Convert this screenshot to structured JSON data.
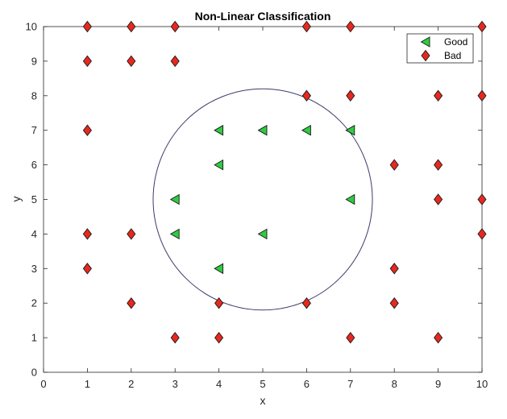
{
  "chart_data": {
    "type": "scatter",
    "title": "Non-Linear Classification",
    "xlabel": "x",
    "ylabel": "y",
    "xlim": [
      0,
      10
    ],
    "ylim": [
      0,
      10
    ],
    "xticks": [
      0,
      1,
      2,
      3,
      4,
      5,
      6,
      7,
      8,
      9,
      10
    ],
    "yticks": [
      0,
      1,
      2,
      3,
      4,
      5,
      6,
      7,
      8,
      9,
      10
    ],
    "grid": false,
    "legend_position": "top-right",
    "series": [
      {
        "name": "Good",
        "marker": "triangle-left",
        "color": "#2ecc40",
        "points": [
          [
            4,
            7
          ],
          [
            5,
            7
          ],
          [
            6,
            7
          ],
          [
            7,
            7
          ],
          [
            4,
            6
          ],
          [
            3,
            5
          ],
          [
            7,
            5
          ],
          [
            3,
            4
          ],
          [
            5,
            4
          ],
          [
            4,
            3
          ]
        ]
      },
      {
        "name": "Bad",
        "marker": "diamond",
        "color": "#e8281e",
        "points": [
          [
            1,
            10
          ],
          [
            2,
            10
          ],
          [
            3,
            10
          ],
          [
            6,
            10
          ],
          [
            7,
            10
          ],
          [
            10,
            10
          ],
          [
            1,
            9
          ],
          [
            2,
            9
          ],
          [
            3,
            9
          ],
          [
            6,
            8
          ],
          [
            7,
            8
          ],
          [
            9,
            8
          ],
          [
            10,
            8
          ],
          [
            1,
            7
          ],
          [
            8,
            6
          ],
          [
            9,
            6
          ],
          [
            9,
            5
          ],
          [
            10,
            5
          ],
          [
            1,
            4
          ],
          [
            2,
            4
          ],
          [
            10,
            4
          ],
          [
            1,
            3
          ],
          [
            8,
            3
          ],
          [
            2,
            2
          ],
          [
            4,
            2
          ],
          [
            6,
            2
          ],
          [
            8,
            2
          ],
          [
            3,
            1
          ],
          [
            4,
            1
          ],
          [
            7,
            1
          ],
          [
            9,
            1
          ]
        ]
      }
    ],
    "circle": {
      "center": [
        5,
        5
      ],
      "radius_x": 2.5,
      "radius_y": 3.2,
      "color": "#3b3b6b"
    }
  }
}
